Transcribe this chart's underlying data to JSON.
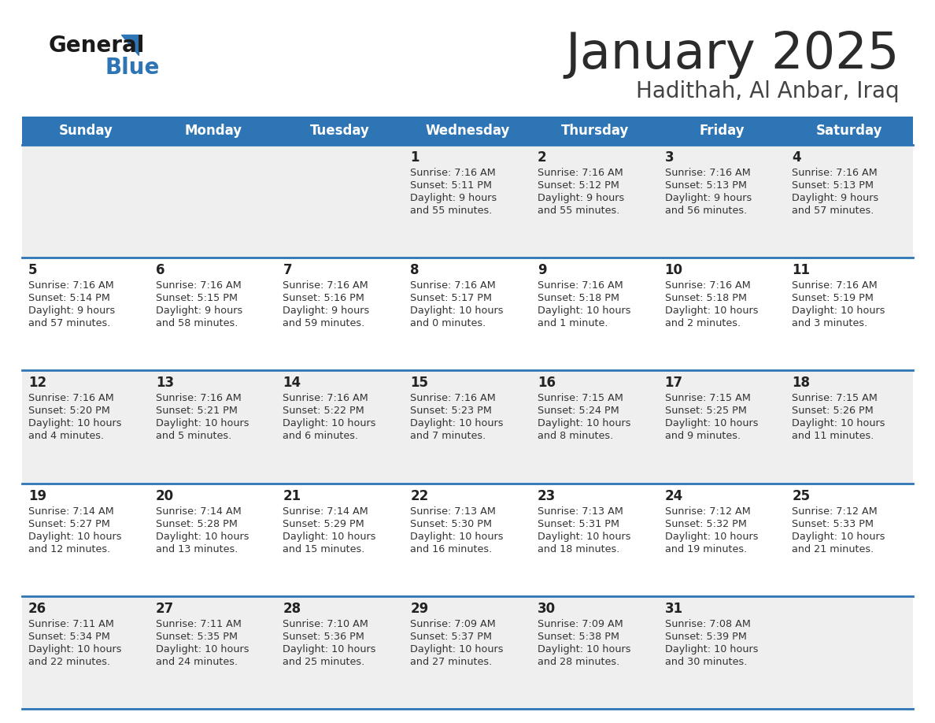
{
  "title": "January 2025",
  "subtitle": "Hadithah, Al Anbar, Iraq",
  "days_of_week": [
    "Sunday",
    "Monday",
    "Tuesday",
    "Wednesday",
    "Thursday",
    "Friday",
    "Saturday"
  ],
  "header_bg": "#2E75B6",
  "header_text_color": "#FFFFFF",
  "row_bg_light": "#EFEFEF",
  "row_bg_white": "#FFFFFF",
  "divider_color": "#2E75B6",
  "day_num_color": "#222222",
  "cell_text_color": "#333333",
  "title_color": "#2B2B2B",
  "subtitle_color": "#444444",
  "logo_text_color": "#1A1A1A",
  "logo_blue_color": "#2E75B6",
  "calendar": [
    [
      {
        "day": null,
        "sunrise": null,
        "sunset": null,
        "daylight": null
      },
      {
        "day": null,
        "sunrise": null,
        "sunset": null,
        "daylight": null
      },
      {
        "day": null,
        "sunrise": null,
        "sunset": null,
        "daylight": null
      },
      {
        "day": 1,
        "sunrise": "7:16 AM",
        "sunset": "5:11 PM",
        "daylight": "9 hours\nand 55 minutes."
      },
      {
        "day": 2,
        "sunrise": "7:16 AM",
        "sunset": "5:12 PM",
        "daylight": "9 hours\nand 55 minutes."
      },
      {
        "day": 3,
        "sunrise": "7:16 AM",
        "sunset": "5:13 PM",
        "daylight": "9 hours\nand 56 minutes."
      },
      {
        "day": 4,
        "sunrise": "7:16 AM",
        "sunset": "5:13 PM",
        "daylight": "9 hours\nand 57 minutes."
      }
    ],
    [
      {
        "day": 5,
        "sunrise": "7:16 AM",
        "sunset": "5:14 PM",
        "daylight": "9 hours\nand 57 minutes."
      },
      {
        "day": 6,
        "sunrise": "7:16 AM",
        "sunset": "5:15 PM",
        "daylight": "9 hours\nand 58 minutes."
      },
      {
        "day": 7,
        "sunrise": "7:16 AM",
        "sunset": "5:16 PM",
        "daylight": "9 hours\nand 59 minutes."
      },
      {
        "day": 8,
        "sunrise": "7:16 AM",
        "sunset": "5:17 PM",
        "daylight": "10 hours\nand 0 minutes."
      },
      {
        "day": 9,
        "sunrise": "7:16 AM",
        "sunset": "5:18 PM",
        "daylight": "10 hours\nand 1 minute."
      },
      {
        "day": 10,
        "sunrise": "7:16 AM",
        "sunset": "5:18 PM",
        "daylight": "10 hours\nand 2 minutes."
      },
      {
        "day": 11,
        "sunrise": "7:16 AM",
        "sunset": "5:19 PM",
        "daylight": "10 hours\nand 3 minutes."
      }
    ],
    [
      {
        "day": 12,
        "sunrise": "7:16 AM",
        "sunset": "5:20 PM",
        "daylight": "10 hours\nand 4 minutes."
      },
      {
        "day": 13,
        "sunrise": "7:16 AM",
        "sunset": "5:21 PM",
        "daylight": "10 hours\nand 5 minutes."
      },
      {
        "day": 14,
        "sunrise": "7:16 AM",
        "sunset": "5:22 PM",
        "daylight": "10 hours\nand 6 minutes."
      },
      {
        "day": 15,
        "sunrise": "7:16 AM",
        "sunset": "5:23 PM",
        "daylight": "10 hours\nand 7 minutes."
      },
      {
        "day": 16,
        "sunrise": "7:15 AM",
        "sunset": "5:24 PM",
        "daylight": "10 hours\nand 8 minutes."
      },
      {
        "day": 17,
        "sunrise": "7:15 AM",
        "sunset": "5:25 PM",
        "daylight": "10 hours\nand 9 minutes."
      },
      {
        "day": 18,
        "sunrise": "7:15 AM",
        "sunset": "5:26 PM",
        "daylight": "10 hours\nand 11 minutes."
      }
    ],
    [
      {
        "day": 19,
        "sunrise": "7:14 AM",
        "sunset": "5:27 PM",
        "daylight": "10 hours\nand 12 minutes."
      },
      {
        "day": 20,
        "sunrise": "7:14 AM",
        "sunset": "5:28 PM",
        "daylight": "10 hours\nand 13 minutes."
      },
      {
        "day": 21,
        "sunrise": "7:14 AM",
        "sunset": "5:29 PM",
        "daylight": "10 hours\nand 15 minutes."
      },
      {
        "day": 22,
        "sunrise": "7:13 AM",
        "sunset": "5:30 PM",
        "daylight": "10 hours\nand 16 minutes."
      },
      {
        "day": 23,
        "sunrise": "7:13 AM",
        "sunset": "5:31 PM",
        "daylight": "10 hours\nand 18 minutes."
      },
      {
        "day": 24,
        "sunrise": "7:12 AM",
        "sunset": "5:32 PM",
        "daylight": "10 hours\nand 19 minutes."
      },
      {
        "day": 25,
        "sunrise": "7:12 AM",
        "sunset": "5:33 PM",
        "daylight": "10 hours\nand 21 minutes."
      }
    ],
    [
      {
        "day": 26,
        "sunrise": "7:11 AM",
        "sunset": "5:34 PM",
        "daylight": "10 hours\nand 22 minutes."
      },
      {
        "day": 27,
        "sunrise": "7:11 AM",
        "sunset": "5:35 PM",
        "daylight": "10 hours\nand 24 minutes."
      },
      {
        "day": 28,
        "sunrise": "7:10 AM",
        "sunset": "5:36 PM",
        "daylight": "10 hours\nand 25 minutes."
      },
      {
        "day": 29,
        "sunrise": "7:09 AM",
        "sunset": "5:37 PM",
        "daylight": "10 hours\nand 27 minutes."
      },
      {
        "day": 30,
        "sunrise": "7:09 AM",
        "sunset": "5:38 PM",
        "daylight": "10 hours\nand 28 minutes."
      },
      {
        "day": 31,
        "sunrise": "7:08 AM",
        "sunset": "5:39 PM",
        "daylight": "10 hours\nand 30 minutes."
      },
      {
        "day": null,
        "sunrise": null,
        "sunset": null,
        "daylight": null
      }
    ]
  ]
}
